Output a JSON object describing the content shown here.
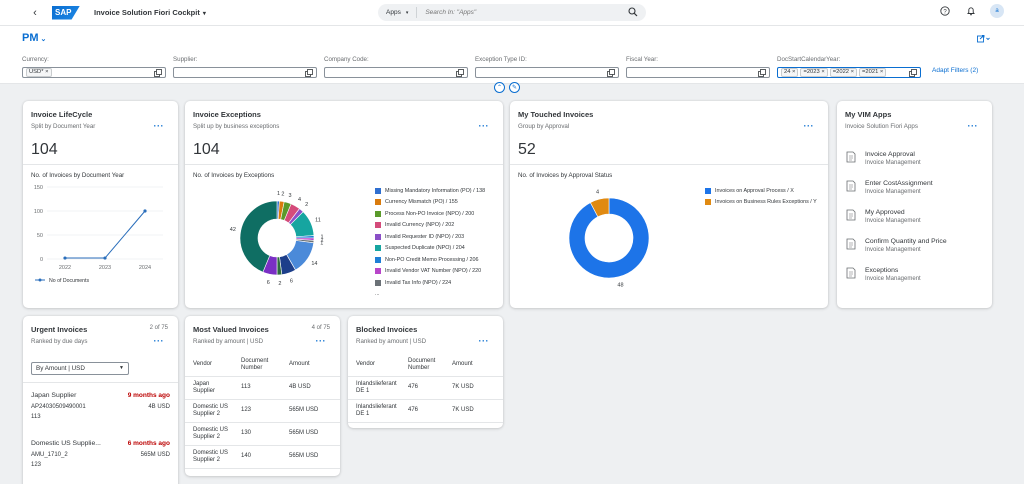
{
  "shell": {
    "back_icon": "back-icon",
    "logo_text": "SAP",
    "app_title": "Invoice Solution Fiori Cockpit",
    "search_scope": "Apps",
    "search_placeholder": "Search In: \"Apps\"",
    "avatar_initial": "a"
  },
  "header": {
    "variant": "PM",
    "filters": [
      {
        "label": "Currency:",
        "tokens": [
          "USD* ×"
        ]
      },
      {
        "label": "Supplier:",
        "tokens": []
      },
      {
        "label": "Company Code:",
        "tokens": []
      },
      {
        "label": "Exception Type ID:",
        "tokens": []
      },
      {
        "label": "Fiscal Year:",
        "tokens": []
      },
      {
        "label": "DocStartCalendarYear:",
        "tokens": [
          "24 ×",
          "=2023 ×",
          "=2022 ×",
          "=2021 ×"
        ]
      }
    ],
    "adapt_filters": "Adapt Filters (2)"
  },
  "lifecycle": {
    "title": "Invoice LifeCycle",
    "subtitle": "Split by Document Year",
    "kpi": "104",
    "chart_title": "No. of Invoices by Document Year",
    "legend": "No of Documents"
  },
  "exceptions": {
    "title": "Invoice Exceptions",
    "subtitle": "Split up by business exceptions",
    "kpi": "104",
    "chart_title": "No. of Invoices by Exceptions"
  },
  "touched": {
    "title": "My Touched Invoices",
    "subtitle": "Group by Approval",
    "kpi": "52",
    "chart_title": "No. of Invoices by Approval Status"
  },
  "vim": {
    "title": "My VIM Apps",
    "subtitle": "Invoice Solution Fiori Apps",
    "items": [
      {
        "title": "Invoice Approval",
        "sub": "Invoice Management"
      },
      {
        "title": "Enter CostAssignment",
        "sub": "Invoice Management"
      },
      {
        "title": "My Approved",
        "sub": "Invoice Management"
      },
      {
        "title": "Confirm Quantity and Price",
        "sub": "Invoice Management"
      },
      {
        "title": "Exceptions",
        "sub": "Invoice Management"
      }
    ]
  },
  "urgent": {
    "title": "Urgent Invoices",
    "subtitle": "Ranked by due days",
    "count": "2 of 75",
    "dropdown": "By Amount | USD",
    "items": [
      {
        "name": "Japan Supplier",
        "due": "9 months ago",
        "doc": "AP24030509490001",
        "amount": "4B USD",
        "num": "113"
      },
      {
        "name": "Domestic US Supplie...",
        "due": "6 months ago",
        "doc": "AMU_1710_2",
        "amount": "565M USD",
        "num": "123"
      }
    ]
  },
  "valued": {
    "title": "Most Valued Invoices",
    "subtitle": "Ranked by amount | USD",
    "count": "4 of 75",
    "headers": [
      "Vendor",
      "Document Number",
      "Amount"
    ],
    "rows": [
      [
        "Japan Supplier",
        "113",
        "4B USD"
      ],
      [
        "Domestic US Supplier 2",
        "123",
        "565M USD"
      ],
      [
        "Domestic US Supplier 2",
        "130",
        "565M USD"
      ],
      [
        "Domestic US Supplier 2",
        "140",
        "565M USD"
      ]
    ]
  },
  "blocked": {
    "title": "Blocked Invoices",
    "subtitle": "Ranked by amount | USD",
    "headers": [
      "Vendor",
      "Document Number",
      "Amount"
    ],
    "rows": [
      [
        "Inlandslieferant DE 1",
        "476",
        "7K USD"
      ],
      [
        "Inlandslieferant DE 1",
        "476",
        "7K USD"
      ]
    ]
  },
  "chart_data": [
    {
      "type": "line",
      "title": "No. of Invoices by Document Year",
      "x": [
        "2022",
        "2023",
        "2024"
      ],
      "series": [
        {
          "name": "No of Documents",
          "values": [
            2,
            2,
            100
          ],
          "color": "#2a6ebb"
        }
      ],
      "yticks": [
        0,
        50,
        100,
        150
      ],
      "ylim": [
        0,
        150
      ],
      "grid": true,
      "legend": "bottom-left"
    },
    {
      "type": "pie",
      "title": "No. of Invoices by Exceptions",
      "donut": true,
      "legend": "right",
      "slices": [
        {
          "label": "Missing Mandatory Information (PO) / 138",
          "value": 1,
          "color": "#2f6fd0"
        },
        {
          "label": "Currency Mismatch (PO) / 155",
          "value": 2,
          "color": "#d97b0d"
        },
        {
          "label": "Process Non-PO Invoice (NPO) / 200",
          "value": 3,
          "color": "#5a9a2a"
        },
        {
          "label": "Invalid Currency (NPO) / 202",
          "value": 4,
          "color": "#d44b7a"
        },
        {
          "label": "Invalid Requester ID (NPO) / 203",
          "value": 2,
          "color": "#8a4fc7"
        },
        {
          "label": "Suspected Duplicate (NPO) / 204",
          "value": 11,
          "color": "#16a5a0"
        },
        {
          "label": "Non-PO Credit Memo Processing / 206",
          "value": 1,
          "color": "#1f7fd6"
        },
        {
          "label": "Invalid Vendor VAT Number (NPO) / 220",
          "value": 1,
          "color": "#b845c9"
        },
        {
          "label": "Invalid Tax Info (NPO) / 224",
          "value": 1,
          "color": "#6b7177"
        },
        {
          "label": "",
          "value": 14,
          "color": "#4b8ad9"
        },
        {
          "label": "",
          "value": 6,
          "color": "#1d3f8a"
        },
        {
          "label": "",
          "value": 2,
          "color": "#2e6b3f"
        },
        {
          "label": "",
          "value": 6,
          "color": "#7a2fc4"
        },
        {
          "label": "",
          "value": 42,
          "color": "#0f6e63"
        }
      ],
      "data_labels": [
        "1",
        "2",
        "3",
        "4",
        "2",
        "11",
        "1",
        "1",
        "1",
        "14",
        "6",
        "2",
        "6",
        "42"
      ],
      "more": "..."
    },
    {
      "type": "pie",
      "title": "No. of Invoices by Approval Status",
      "donut": true,
      "legend": "right",
      "slices": [
        {
          "label": "Invoices on Approval Process / X",
          "value": 48,
          "color": "#1d74e8"
        },
        {
          "label": "Invoices on Business Rules Exceptions / Y",
          "value": 4,
          "color": "#e08a12"
        }
      ],
      "data_labels": [
        "48",
        "4"
      ]
    }
  ]
}
